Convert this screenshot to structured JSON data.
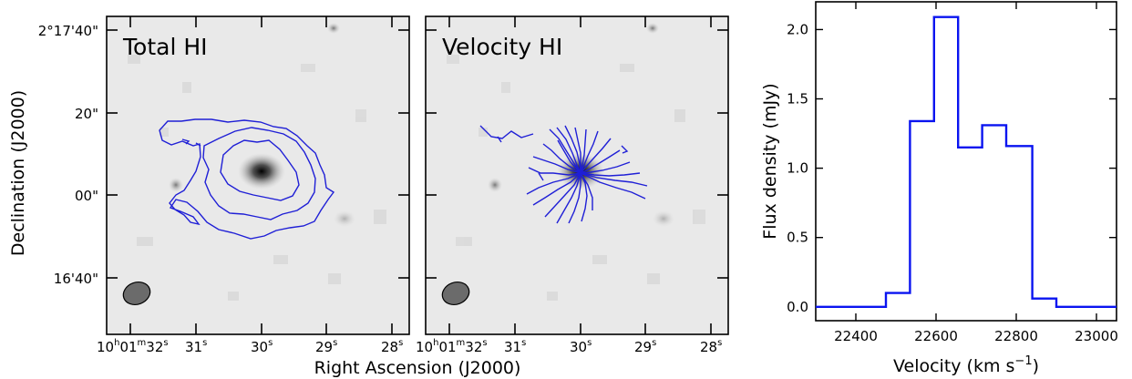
{
  "figure": {
    "xlabel": "Right Ascension (J2000)",
    "ylabel": "Declination (J2000)"
  },
  "chart_data": [
    {
      "type": "contour-map",
      "title": "Total HI",
      "ra_ticks": [
        {
          "pre": "10",
          "h": "h",
          "m_pre": "01",
          "m": "m",
          "v": "32",
          "s": "s"
        },
        {
          "v": "31",
          "s": "s"
        },
        {
          "v": "30",
          "s": "s"
        },
        {
          "v": "29",
          "s": "s"
        },
        {
          "v": "28",
          "s": "s"
        }
      ],
      "dec_ticks": [
        "2°17'40\"",
        "20\"",
        "00\"",
        "16'40\""
      ],
      "beam": "filled-ellipse",
      "contour_color": "#1f1fd6"
    },
    {
      "type": "contour-map",
      "title": "Velocity HI",
      "ra_ticks": [
        {
          "pre": "10",
          "h": "h",
          "m_pre": "01",
          "m": "m",
          "v": "32",
          "s": "s"
        },
        {
          "v": "31",
          "s": "s"
        },
        {
          "v": "30",
          "s": "s"
        },
        {
          "v": "29",
          "s": "s"
        },
        {
          "v": "28",
          "s": "s"
        }
      ],
      "beam": "filled-ellipse",
      "contour_color": "#1f1fd6"
    },
    {
      "type": "line",
      "step": true,
      "xlabel": "Velocity (km s",
      "xlabel_sup": "−1",
      "xlabel_end": ")",
      "ylabel": "Flux density (mJy)",
      "xlim": [
        22300,
        23050
      ],
      "ylim": [
        -0.1,
        2.2
      ],
      "xticks": [
        22400,
        22600,
        22800,
        23000
      ],
      "yticks": [
        "0.0",
        "0.5",
        "1.0",
        "1.5",
        "2.0"
      ],
      "color": "#0a14f0",
      "edges": [
        22300,
        22475,
        22535,
        22595,
        22655,
        22715,
        22775,
        22840,
        22900,
        23050
      ],
      "values": [
        0.0,
        0.1,
        1.34,
        2.09,
        1.15,
        1.31,
        1.16,
        0.06,
        0.0
      ]
    }
  ]
}
